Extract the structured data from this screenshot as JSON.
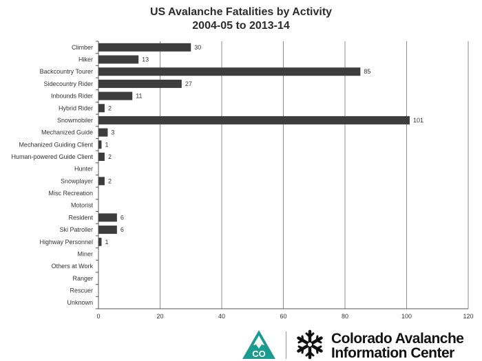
{
  "chart_data": {
    "type": "bar",
    "orientation": "horizontal",
    "title": "US Avalanche Fatalities by Activity",
    "subtitle": "2004-05 to 2013-14",
    "categories": [
      "Climber",
      "Hiker",
      "Backcountry Tourer",
      "Sidecountry Rider",
      "Inbounds Rider",
      "Hybrid Rider",
      "Snowmobiler",
      "Mechanized Guide",
      "Mechanized Guiding Client",
      "Human-powered Guide Client",
      "Hunter",
      "Snowplayer",
      "Misc Recreation",
      "Motorist",
      "Resident",
      "Ski Patroller",
      "Highway Personnel",
      "Miner",
      "Others at Work",
      "Ranger",
      "Rescuer",
      "Unknown"
    ],
    "values": [
      30,
      13,
      85,
      27,
      11,
      2,
      101,
      3,
      1,
      2,
      null,
      2,
      null,
      null,
      6,
      6,
      1,
      null,
      null,
      null,
      null,
      null
    ],
    "xlim": [
      0,
      120
    ],
    "xticks": [
      0,
      20,
      40,
      60,
      80,
      100,
      120
    ],
    "grid": "vertical",
    "bar_color": "#3d3d3d",
    "xlabel": "",
    "ylabel": ""
  },
  "footer": {
    "badge_text": "CO",
    "badge_color": "#1b9c8f",
    "organization_line1": "Colorado Avalanche",
    "organization_line2": "Information Center",
    "logo_icon": "snowflake-icon"
  }
}
